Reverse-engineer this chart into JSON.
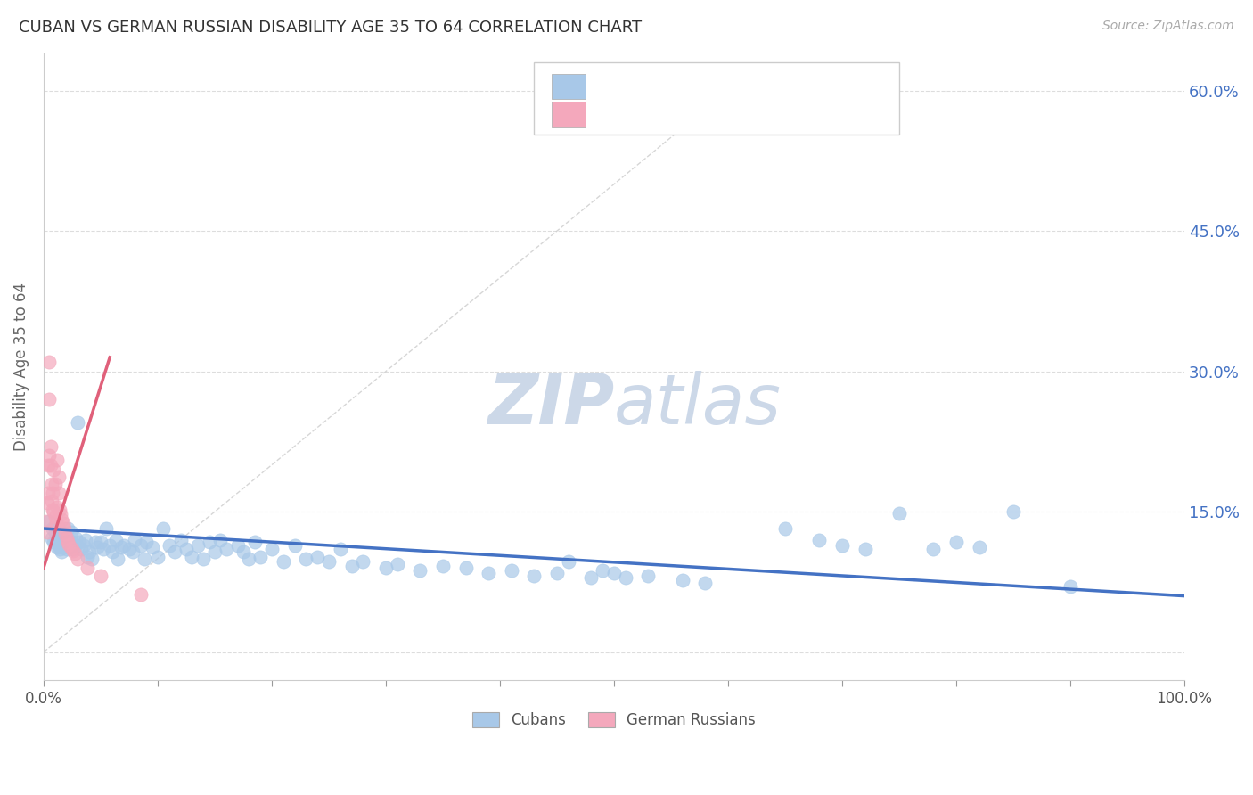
{
  "title": "CUBAN VS GERMAN RUSSIAN DISABILITY AGE 35 TO 64 CORRELATION CHART",
  "source": "Source: ZipAtlas.com",
  "ylabel": "Disability Age 35 to 64",
  "xmin": 0.0,
  "xmax": 1.0,
  "ymin": -0.03,
  "ymax": 0.64,
  "cubans_color": "#a8c8e8",
  "german_russians_color": "#f4a8bc",
  "trendline_cubans_color": "#4472c4",
  "trendline_german_russians_color": "#e0607a",
  "trendline_dashed_color": "#cccccc",
  "ytick_color": "#4472c4",
  "background_color": "#ffffff",
  "legend_text_color": "#333333",
  "legend_value_color": "#4472c4",
  "legend_n_color": "#e0607a",
  "watermark_color": "#ccd8e8",
  "cubans_x": [
    0.005,
    0.007,
    0.008,
    0.009,
    0.01,
    0.01,
    0.011,
    0.012,
    0.013,
    0.013,
    0.014,
    0.015,
    0.015,
    0.016,
    0.016,
    0.017,
    0.018,
    0.018,
    0.019,
    0.02,
    0.021,
    0.022,
    0.023,
    0.024,
    0.025,
    0.026,
    0.027,
    0.028,
    0.03,
    0.031,
    0.033,
    0.035,
    0.037,
    0.038,
    0.04,
    0.042,
    0.045,
    0.047,
    0.05,
    0.052,
    0.055,
    0.058,
    0.06,
    0.063,
    0.065,
    0.068,
    0.07,
    0.075,
    0.078,
    0.08,
    0.085,
    0.088,
    0.09,
    0.095,
    0.1,
    0.105,
    0.11,
    0.115,
    0.12,
    0.125,
    0.13,
    0.135,
    0.14,
    0.145,
    0.15,
    0.155,
    0.16,
    0.17,
    0.175,
    0.18,
    0.185,
    0.19,
    0.2,
    0.21,
    0.22,
    0.23,
    0.24,
    0.25,
    0.26,
    0.27,
    0.28,
    0.3,
    0.31,
    0.33,
    0.35,
    0.37,
    0.39,
    0.41,
    0.43,
    0.45,
    0.46,
    0.48,
    0.49,
    0.5,
    0.51,
    0.53,
    0.56,
    0.58,
    0.65,
    0.68,
    0.7,
    0.72,
    0.75,
    0.78,
    0.8,
    0.82,
    0.85,
    0.9
  ],
  "cubans_y": [
    0.14,
    0.122,
    0.132,
    0.118,
    0.128,
    0.12,
    0.125,
    0.112,
    0.114,
    0.132,
    0.11,
    0.118,
    0.128,
    0.107,
    0.12,
    0.112,
    0.122,
    0.114,
    0.118,
    0.11,
    0.132,
    0.12,
    0.112,
    0.128,
    0.118,
    0.11,
    0.114,
    0.122,
    0.245,
    0.118,
    0.11,
    0.114,
    0.12,
    0.102,
    0.107,
    0.1,
    0.118,
    0.112,
    0.118,
    0.11,
    0.132,
    0.114,
    0.107,
    0.12,
    0.1,
    0.112,
    0.114,
    0.11,
    0.107,
    0.12,
    0.114,
    0.1,
    0.118,
    0.112,
    0.102,
    0.132,
    0.114,
    0.107,
    0.12,
    0.11,
    0.102,
    0.114,
    0.1,
    0.118,
    0.107,
    0.12,
    0.11,
    0.114,
    0.107,
    0.1,
    0.118,
    0.102,
    0.11,
    0.097,
    0.114,
    0.1,
    0.102,
    0.097,
    0.11,
    0.092,
    0.097,
    0.09,
    0.094,
    0.087,
    0.092,
    0.09,
    0.084,
    0.087,
    0.082,
    0.084,
    0.097,
    0.08,
    0.087,
    0.084,
    0.08,
    0.082,
    0.077,
    0.074,
    0.132,
    0.12,
    0.114,
    0.11,
    0.148,
    0.11,
    0.118,
    0.112,
    0.15,
    0.07
  ],
  "german_russians_x": [
    0.002,
    0.003,
    0.003,
    0.004,
    0.004,
    0.005,
    0.005,
    0.005,
    0.006,
    0.006,
    0.007,
    0.007,
    0.008,
    0.008,
    0.009,
    0.009,
    0.01,
    0.01,
    0.011,
    0.012,
    0.012,
    0.013,
    0.013,
    0.014,
    0.015,
    0.016,
    0.017,
    0.018,
    0.019,
    0.02,
    0.021,
    0.022,
    0.024,
    0.026,
    0.027,
    0.03,
    0.038,
    0.05,
    0.085
  ],
  "german_russians_y": [
    0.14,
    0.128,
    0.16,
    0.17,
    0.2,
    0.21,
    0.27,
    0.31,
    0.2,
    0.22,
    0.162,
    0.18,
    0.152,
    0.17,
    0.15,
    0.195,
    0.144,
    0.18,
    0.138,
    0.155,
    0.205,
    0.17,
    0.187,
    0.152,
    0.147,
    0.142,
    0.138,
    0.132,
    0.126,
    0.122,
    0.118,
    0.115,
    0.111,
    0.108,
    0.105,
    0.1,
    0.09,
    0.082,
    0.062
  ],
  "cubans_trendline_x": [
    0.0,
    1.0
  ],
  "cubans_trendline_y": [
    0.132,
    0.06
  ],
  "german_russians_trendline_x": [
    0.0,
    0.058
  ],
  "german_russians_trendline_y": [
    0.09,
    0.315
  ],
  "dashed_line_x": [
    0.0,
    0.62
  ],
  "dashed_line_y": [
    0.0,
    0.62
  ]
}
